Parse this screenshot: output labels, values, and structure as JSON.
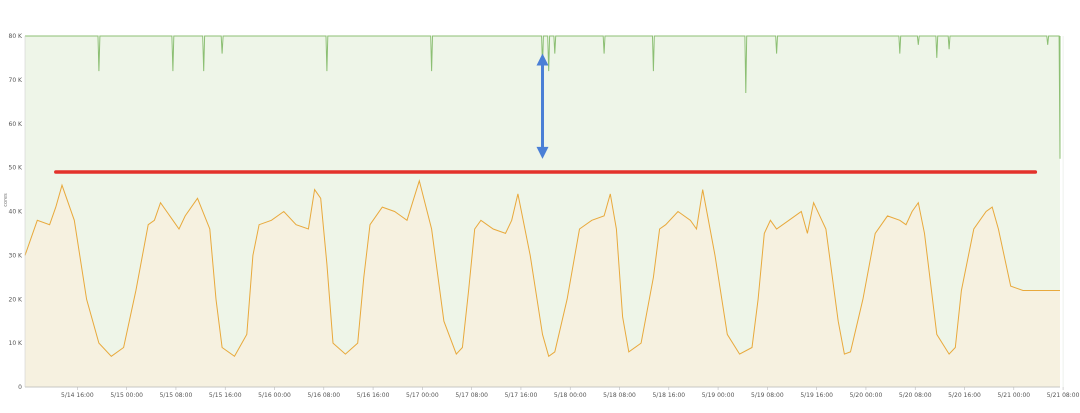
{
  "chart_data": {
    "type": "area",
    "title": "",
    "xlabel": "",
    "ylabel": "cores",
    "ylim": [
      0,
      80000
    ],
    "grid": true,
    "x_ticks": [
      "5/14 16:00",
      "5/15 00:00",
      "5/15 08:00",
      "5/15 16:00",
      "5/16 00:00",
      "5/16 08:00",
      "5/16 16:00",
      "5/17 00:00",
      "5/17 08:00",
      "5/17 16:00",
      "5/18 00:00",
      "5/18 08:00",
      "5/18 16:00",
      "5/19 00:00",
      "5/19 08:00",
      "5/19 16:00",
      "5/20 00:00",
      "5/20 08:00",
      "5/20 16:00",
      "5/21 00:00",
      "5/21 08:00"
    ],
    "y_ticks": [
      {
        "value": 0,
        "label": "0"
      },
      {
        "value": 10000,
        "label": "10 K"
      },
      {
        "value": 20000,
        "label": "20 K"
      },
      {
        "value": 30000,
        "label": "30 K"
      },
      {
        "value": 40000,
        "label": "40 K"
      },
      {
        "value": 50000,
        "label": "50 K"
      },
      {
        "value": 60000,
        "label": "60 K"
      },
      {
        "value": 70000,
        "label": "70 K"
      },
      {
        "value": 80000,
        "label": "80 K"
      }
    ],
    "x_range_hours": [
      0,
      168
    ],
    "series": [
      {
        "color": "#8cbf73",
        "fill": "#eef5e8",
        "baseline": 80000,
        "dips": [
          {
            "x": 12,
            "y": 72000
          },
          {
            "x": 24,
            "y": 72000
          },
          {
            "x": 29,
            "y": 72000
          },
          {
            "x": 32,
            "y": 76000
          },
          {
            "x": 49,
            "y": 72000
          },
          {
            "x": 66,
            "y": 72000
          },
          {
            "x": 84,
            "y": 73000
          },
          {
            "x": 85,
            "y": 72000
          },
          {
            "x": 86,
            "y": 76000
          },
          {
            "x": 94,
            "y": 76000
          },
          {
            "x": 102,
            "y": 72000
          },
          {
            "x": 117,
            "y": 67000
          },
          {
            "x": 122,
            "y": 76000
          },
          {
            "x": 142,
            "y": 76000
          },
          {
            "x": 145,
            "y": 78000
          },
          {
            "x": 148,
            "y": 75000
          },
          {
            "x": 150,
            "y": 77000
          },
          {
            "x": 166,
            "y": 78000
          },
          {
            "x": 168,
            "y": 52000
          }
        ]
      },
      {
        "color": "#e8a93c",
        "fill": "#f6f1e0",
        "x": [
          0,
          2,
          4,
          5,
          6,
          8,
          10,
          12,
          14,
          16,
          18,
          20,
          21,
          22,
          23,
          24,
          25,
          26,
          28,
          30,
          31,
          32,
          34,
          36,
          37,
          38,
          40,
          42,
          44,
          46,
          47,
          48,
          49,
          50,
          52,
          54,
          55,
          56,
          58,
          60,
          61,
          62,
          64,
          66,
          68,
          70,
          71,
          72,
          73,
          74,
          76,
          78,
          79,
          80,
          82,
          84,
          85,
          86,
          88,
          90,
          92,
          94,
          95,
          96,
          97,
          98,
          100,
          102,
          103,
          104,
          106,
          108,
          109,
          110,
          112,
          114,
          116,
          118,
          119,
          120,
          121,
          122,
          124,
          126,
          127,
          128,
          130,
          132,
          133,
          134,
          136,
          138,
          140,
          142,
          143,
          144,
          145,
          146,
          148,
          150,
          151,
          152,
          154,
          156,
          157,
          158,
          160,
          162,
          164,
          166,
          167,
          168
        ],
        "values": [
          30000,
          38000,
          37000,
          41000,
          46000,
          38000,
          20000,
          10000,
          7000,
          9000,
          22000,
          37000,
          38000,
          42000,
          40000,
          38000,
          36000,
          39000,
          43000,
          36000,
          20000,
          9000,
          7000,
          12000,
          30000,
          37000,
          38000,
          40000,
          37000,
          36000,
          45000,
          43000,
          28000,
          10000,
          7500,
          10000,
          25000,
          37000,
          41000,
          40000,
          39000,
          38000,
          47000,
          36000,
          15000,
          7500,
          9000,
          22000,
          36000,
          38000,
          36000,
          35000,
          38000,
          44000,
          30000,
          12000,
          7000,
          8000,
          20000,
          36000,
          38000,
          39000,
          44000,
          36000,
          16000,
          8000,
          10000,
          25000,
          36000,
          37000,
          40000,
          38000,
          36000,
          45000,
          30000,
          12000,
          7500,
          9000,
          20000,
          35000,
          38000,
          36000,
          38000,
          40000,
          35000,
          42000,
          36000,
          15000,
          7500,
          8000,
          20000,
          35000,
          39000,
          38000,
          37000,
          40000,
          42000,
          35000,
          12000,
          7500,
          9000,
          22000,
          36000,
          40000,
          41000,
          36000,
          23000,
          22000,
          22000,
          22000,
          22000,
          22000
        ]
      }
    ],
    "annotations": [
      {
        "type": "hline",
        "y": 49000,
        "x_from": 5,
        "x_to": 164,
        "color": "#e3322b"
      },
      {
        "type": "double-arrow",
        "x": 84,
        "y_from": 52000,
        "y_to": 76000,
        "color": "#4a7fd6"
      }
    ]
  }
}
